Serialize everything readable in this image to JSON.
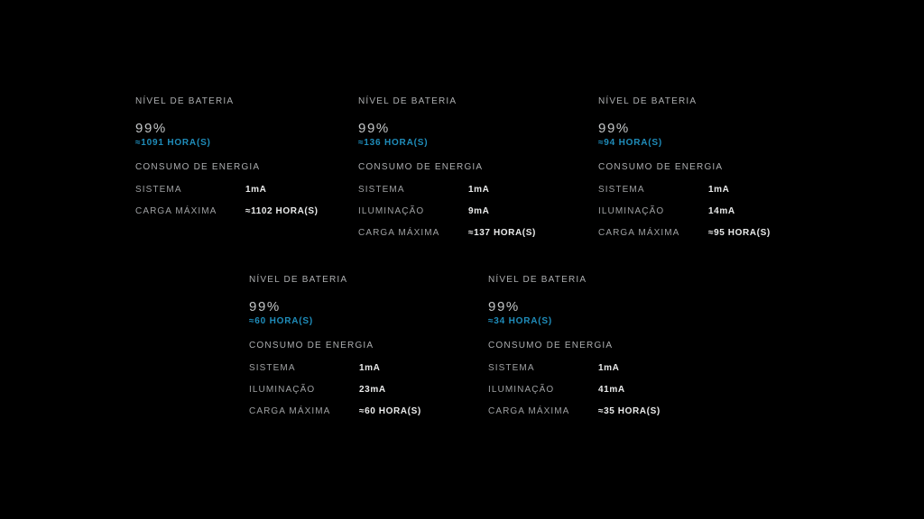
{
  "colors": {
    "background": "#000000",
    "accent_blue": "#1f8dbb",
    "label_gray": "#9fa1a3",
    "heading_gray": "#acaeb0",
    "percent_gray": "#c3c6c7",
    "value_white": "#eaebeb"
  },
  "panels": [
    {
      "battery_level_label": "NÍVEL DE BATERIA",
      "battery_percent": "99%",
      "battery_hours": "≈1091 HORA(S)",
      "consumption_label": "CONSUMO DE ENERGIA",
      "rows": [
        {
          "label": "SISTEMA",
          "value": "1mA"
        },
        {
          "label": "CARGA MÁXIMA",
          "value": "≈1102 HORA(S)"
        }
      ]
    },
    {
      "battery_level_label": "NÍVEL DE BATERIA",
      "battery_percent": "99%",
      "battery_hours": "≈136 HORA(S)",
      "consumption_label": "CONSUMO DE ENERGIA",
      "rows": [
        {
          "label": "SISTEMA",
          "value": "1mA"
        },
        {
          "label": "ILUMINAÇÃO",
          "value": "9mA"
        },
        {
          "label": "CARGA MÁXIMA",
          "value": "≈137 HORA(S)"
        }
      ]
    },
    {
      "battery_level_label": "NÍVEL DE BATERIA",
      "battery_percent": "99%",
      "battery_hours": "≈94 HORA(S)",
      "consumption_label": "CONSUMO DE ENERGIA",
      "rows": [
        {
          "label": "SISTEMA",
          "value": "1mA"
        },
        {
          "label": "ILUMINAÇÃO",
          "value": "14mA"
        },
        {
          "label": "CARGA MÁXIMA",
          "value": "≈95 HORA(S)"
        }
      ]
    },
    {
      "battery_level_label": "NÍVEL DE BATERIA",
      "battery_percent": "99%",
      "battery_hours": "≈60 HORA(S)",
      "consumption_label": "CONSUMO DE ENERGIA",
      "rows": [
        {
          "label": "SISTEMA",
          "value": "1mA"
        },
        {
          "label": "ILUMINAÇÃO",
          "value": "23mA"
        },
        {
          "label": "CARGA MÁXIMA",
          "value": "≈60 HORA(S)"
        }
      ]
    },
    {
      "battery_level_label": "NÍVEL DE BATERIA",
      "battery_percent": "99%",
      "battery_hours": "≈34 HORA(S)",
      "consumption_label": "CONSUMO DE ENERGIA",
      "rows": [
        {
          "label": "SISTEMA",
          "value": "1mA"
        },
        {
          "label": "ILUMINAÇÃO",
          "value": "41mA"
        },
        {
          "label": "CARGA MÁXIMA",
          "value": "≈35 HORA(S)"
        }
      ]
    }
  ]
}
